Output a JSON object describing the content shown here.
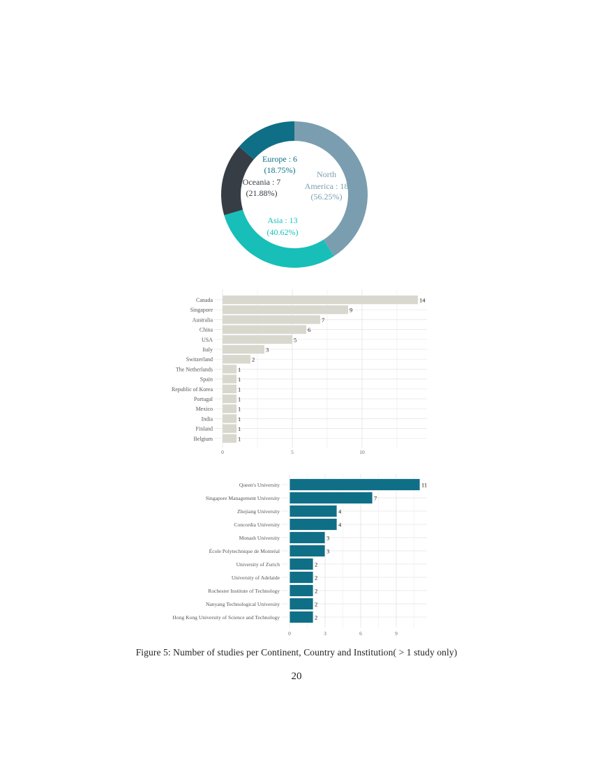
{
  "chart_data": [
    {
      "type": "pie",
      "subtype": "donut",
      "title": "Studies per Continent",
      "categories": [
        "North America",
        "Asia",
        "Oceania",
        "Europe"
      ],
      "values": [
        18,
        13,
        7,
        6
      ],
      "percent_labels": [
        "56.25%",
        "40.62%",
        "21.88%",
        "18.75%"
      ],
      "labels": [
        {
          "line1": "North",
          "line2": "America : 18",
          "line3": "(56.25%)"
        },
        {
          "line1": "Asia : 13",
          "line2": "(40.62%)"
        },
        {
          "line1": "Oceania : 7",
          "line2": "(21.88%)"
        },
        {
          "line1": "Europe : 6",
          "line2": "(18.75%)"
        }
      ],
      "colors": [
        "#7a9eb0",
        "#17bfb8",
        "#363d45",
        "#0f6f86"
      ],
      "label_colors": [
        "#7a9eb0",
        "#17bfb8",
        "#363d45",
        "#0f6f86"
      ]
    },
    {
      "type": "bar",
      "orientation": "horizontal",
      "title": "Studies per Country",
      "categories": [
        "Canada",
        "Singapore",
        "Australia",
        "China",
        "USA",
        "Italy",
        "Switzerland",
        "The Netherlands",
        "Spain",
        "Republic of Korea",
        "Portugal",
        "Mexico",
        "India",
        "Finland",
        "Belgium"
      ],
      "values": [
        14,
        9,
        7,
        6,
        5,
        3,
        2,
        1,
        1,
        1,
        1,
        1,
        1,
        1,
        1
      ],
      "xlabel": "",
      "ylabel": "",
      "xticks": [
        "0",
        "5",
        "10"
      ],
      "xlim": [
        0,
        14.6
      ],
      "grid": true,
      "bar_color": "#d8d8cf"
    },
    {
      "type": "bar",
      "orientation": "horizontal",
      "title": "Studies per Institution",
      "categories": [
        "Queen's University",
        "Singapore Management University",
        "Zhejiang University",
        "Concordia University",
        "Monash University",
        "École Polytechnique de Montréal",
        "University of Zurich",
        "University of Adelaide",
        "Rochester Institute of Technology",
        "Nanyang Technological University",
        "Hong Kong University of Science and Technology"
      ],
      "values": [
        11,
        7,
        4,
        4,
        3,
        3,
        2,
        2,
        2,
        2,
        2
      ],
      "xlabel": "",
      "ylabel": "",
      "xticks": [
        "0",
        "3",
        "6",
        "9"
      ],
      "xlim": [
        0,
        11.6
      ],
      "grid": true,
      "bar_color": "#0f6f86"
    }
  ],
  "caption": "Figure 5: Number of studies per Continent, Country and Institution( > 1 study only)",
  "page_number": "20"
}
